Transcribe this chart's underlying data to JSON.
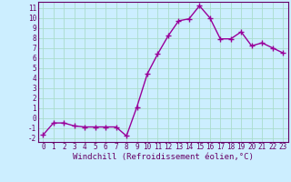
{
  "x": [
    0,
    1,
    2,
    3,
    4,
    5,
    6,
    7,
    8,
    9,
    10,
    11,
    12,
    13,
    14,
    15,
    16,
    17,
    18,
    19,
    20,
    21,
    22,
    23
  ],
  "y": [
    -1.7,
    -0.5,
    -0.5,
    -0.8,
    -0.9,
    -0.9,
    -0.9,
    -0.9,
    -1.8,
    1.1,
    4.4,
    6.4,
    8.2,
    9.7,
    9.9,
    11.2,
    10.0,
    7.9,
    7.9,
    8.6,
    7.2,
    7.5,
    7.0,
    6.5
  ],
  "line_color": "#990099",
  "marker": "+",
  "marker_size": 4,
  "marker_lw": 1.0,
  "line_width": 1.0,
  "xlabel": "Windchill (Refroidissement éolien,°C)",
  "ylim": [
    -2.4,
    11.6
  ],
  "xlim": [
    -0.5,
    23.5
  ],
  "yticks": [
    -2,
    -1,
    0,
    1,
    2,
    3,
    4,
    5,
    6,
    7,
    8,
    9,
    10,
    11
  ],
  "xticks": [
    0,
    1,
    2,
    3,
    4,
    5,
    6,
    7,
    8,
    9,
    10,
    11,
    12,
    13,
    14,
    15,
    16,
    17,
    18,
    19,
    20,
    21,
    22,
    23
  ],
  "bg_color": "#cceeff",
  "grid_color": "#aaddcc",
  "tick_label_fontsize": 5.5,
  "xlabel_fontsize": 6.5,
  "spine_color": "#660066",
  "label_color": "#660066"
}
